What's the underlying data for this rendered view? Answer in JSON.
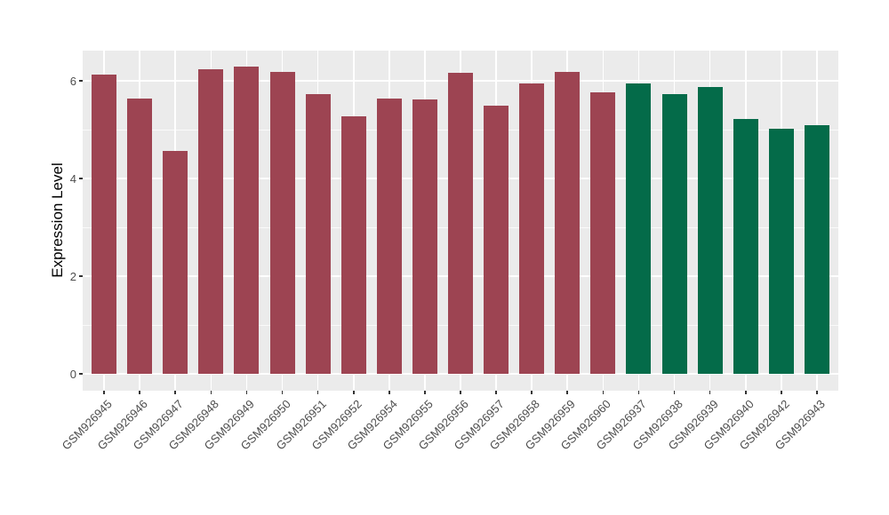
{
  "chart_data": {
    "type": "bar",
    "title": "",
    "xlabel": "",
    "ylabel": "Expression Level",
    "ylim": [
      0,
      6.63
    ],
    "yticks": [
      0,
      2,
      4,
      6
    ],
    "yminor": [
      1,
      3,
      5
    ],
    "grid": "white major+minor horizontal lines and major vertical lines on gray panel",
    "legend_position": "none",
    "categories": [
      "GSM926945",
      "GSM926946",
      "GSM926947",
      "GSM926948",
      "GSM926949",
      "GSM926950",
      "GSM926951",
      "GSM926952",
      "GSM926954",
      "GSM926955",
      "GSM926956",
      "GSM926957",
      "GSM926958",
      "GSM926959",
      "GSM926960",
      "GSM926937",
      "GSM926938",
      "GSM926939",
      "GSM926940",
      "GSM926942",
      "GSM926943"
    ],
    "values": [
      6.13,
      5.64,
      4.57,
      6.23,
      6.3,
      6.18,
      5.72,
      5.28,
      5.63,
      5.61,
      6.17,
      5.5,
      5.95,
      6.18,
      5.77,
      5.95,
      5.73,
      5.88,
      5.22,
      5.02,
      5.09
    ],
    "bar_colors": [
      "#9D4452",
      "#9D4452",
      "#9D4452",
      "#9D4452",
      "#9D4452",
      "#9D4452",
      "#9D4452",
      "#9D4452",
      "#9D4452",
      "#9D4452",
      "#9D4452",
      "#9D4452",
      "#9D4452",
      "#9D4452",
      "#9D4452",
      "#046B49",
      "#046B49",
      "#046B49",
      "#046B49",
      "#046B49",
      "#046B49"
    ],
    "color_groups": [
      {
        "color": "#9D4452",
        "first": "GSM926945",
        "last": "GSM926960",
        "count": 15
      },
      {
        "color": "#046B49",
        "first": "GSM926937",
        "last": "GSM926943",
        "count": 6
      }
    ]
  },
  "style": {
    "panel_background": "#EBEBEB",
    "gridline_color": "#FFFFFF",
    "tick_color": "#333333",
    "tick_label_color": "#4D4D4D",
    "axis_title_color": "#000000",
    "figure_background": "#FFFFFF"
  }
}
